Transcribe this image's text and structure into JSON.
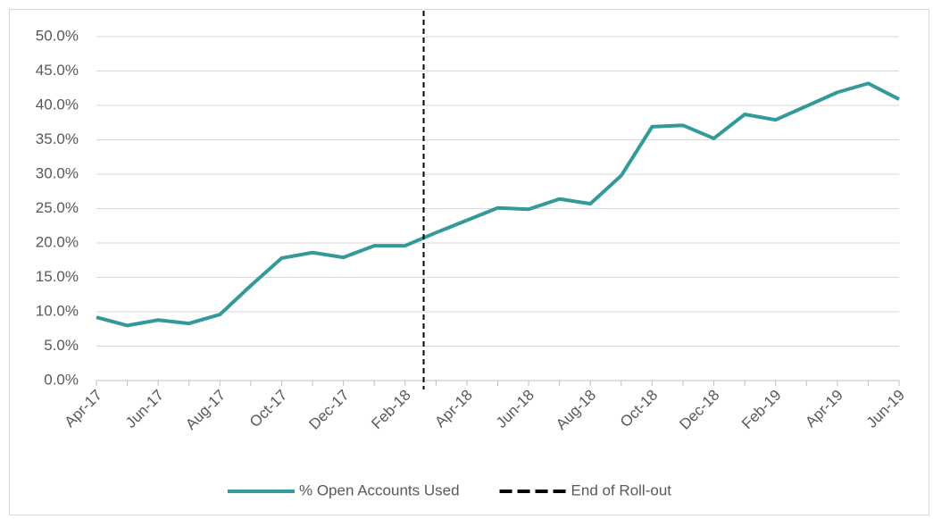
{
  "chart_data": {
    "type": "line",
    "categories": [
      "Apr-17",
      null,
      "Jun-17",
      null,
      "Aug-17",
      null,
      "Oct-17",
      null,
      "Dec-17",
      null,
      "Feb-18",
      null,
      "Apr-18",
      null,
      "Jun-18",
      null,
      "Aug-18",
      null,
      "Oct-18",
      null,
      "Dec-18",
      null,
      "Feb-19",
      null,
      "Apr-19",
      null,
      "Jun-19"
    ],
    "series": [
      {
        "name": "% Open Accounts Used",
        "color": "#339999",
        "values": [
          9.2,
          8.0,
          8.8,
          8.3,
          9.6,
          13.8,
          17.8,
          18.6,
          17.9,
          19.6,
          19.6,
          21.5,
          23.3,
          25.1,
          24.9,
          26.4,
          25.7,
          29.8,
          36.9,
          37.1,
          35.2,
          38.7,
          37.9,
          39.9,
          41.9,
          43.2,
          40.9
        ]
      },
      {
        "name": "End of Roll-out",
        "color": "#000000",
        "dashed": true,
        "x": 10.6
      }
    ],
    "ylim": [
      0,
      50
    ],
    "yticks": [
      {
        "value": 0,
        "label": "0.0%"
      },
      {
        "value": 5,
        "label": "5.0%"
      },
      {
        "value": 10,
        "label": "10.0%"
      },
      {
        "value": 15,
        "label": "15.0%"
      },
      {
        "value": 20,
        "label": "20.0%"
      },
      {
        "value": 25,
        "label": "25.0%"
      },
      {
        "value": 30,
        "label": "30.0%"
      },
      {
        "value": 35,
        "label": "35.0%"
      },
      {
        "value": 40,
        "label": "40.0%"
      },
      {
        "value": 45,
        "label": "45.0%"
      },
      {
        "value": 50,
        "label": "50.0%"
      }
    ],
    "grid": true,
    "legend": "bottom"
  }
}
